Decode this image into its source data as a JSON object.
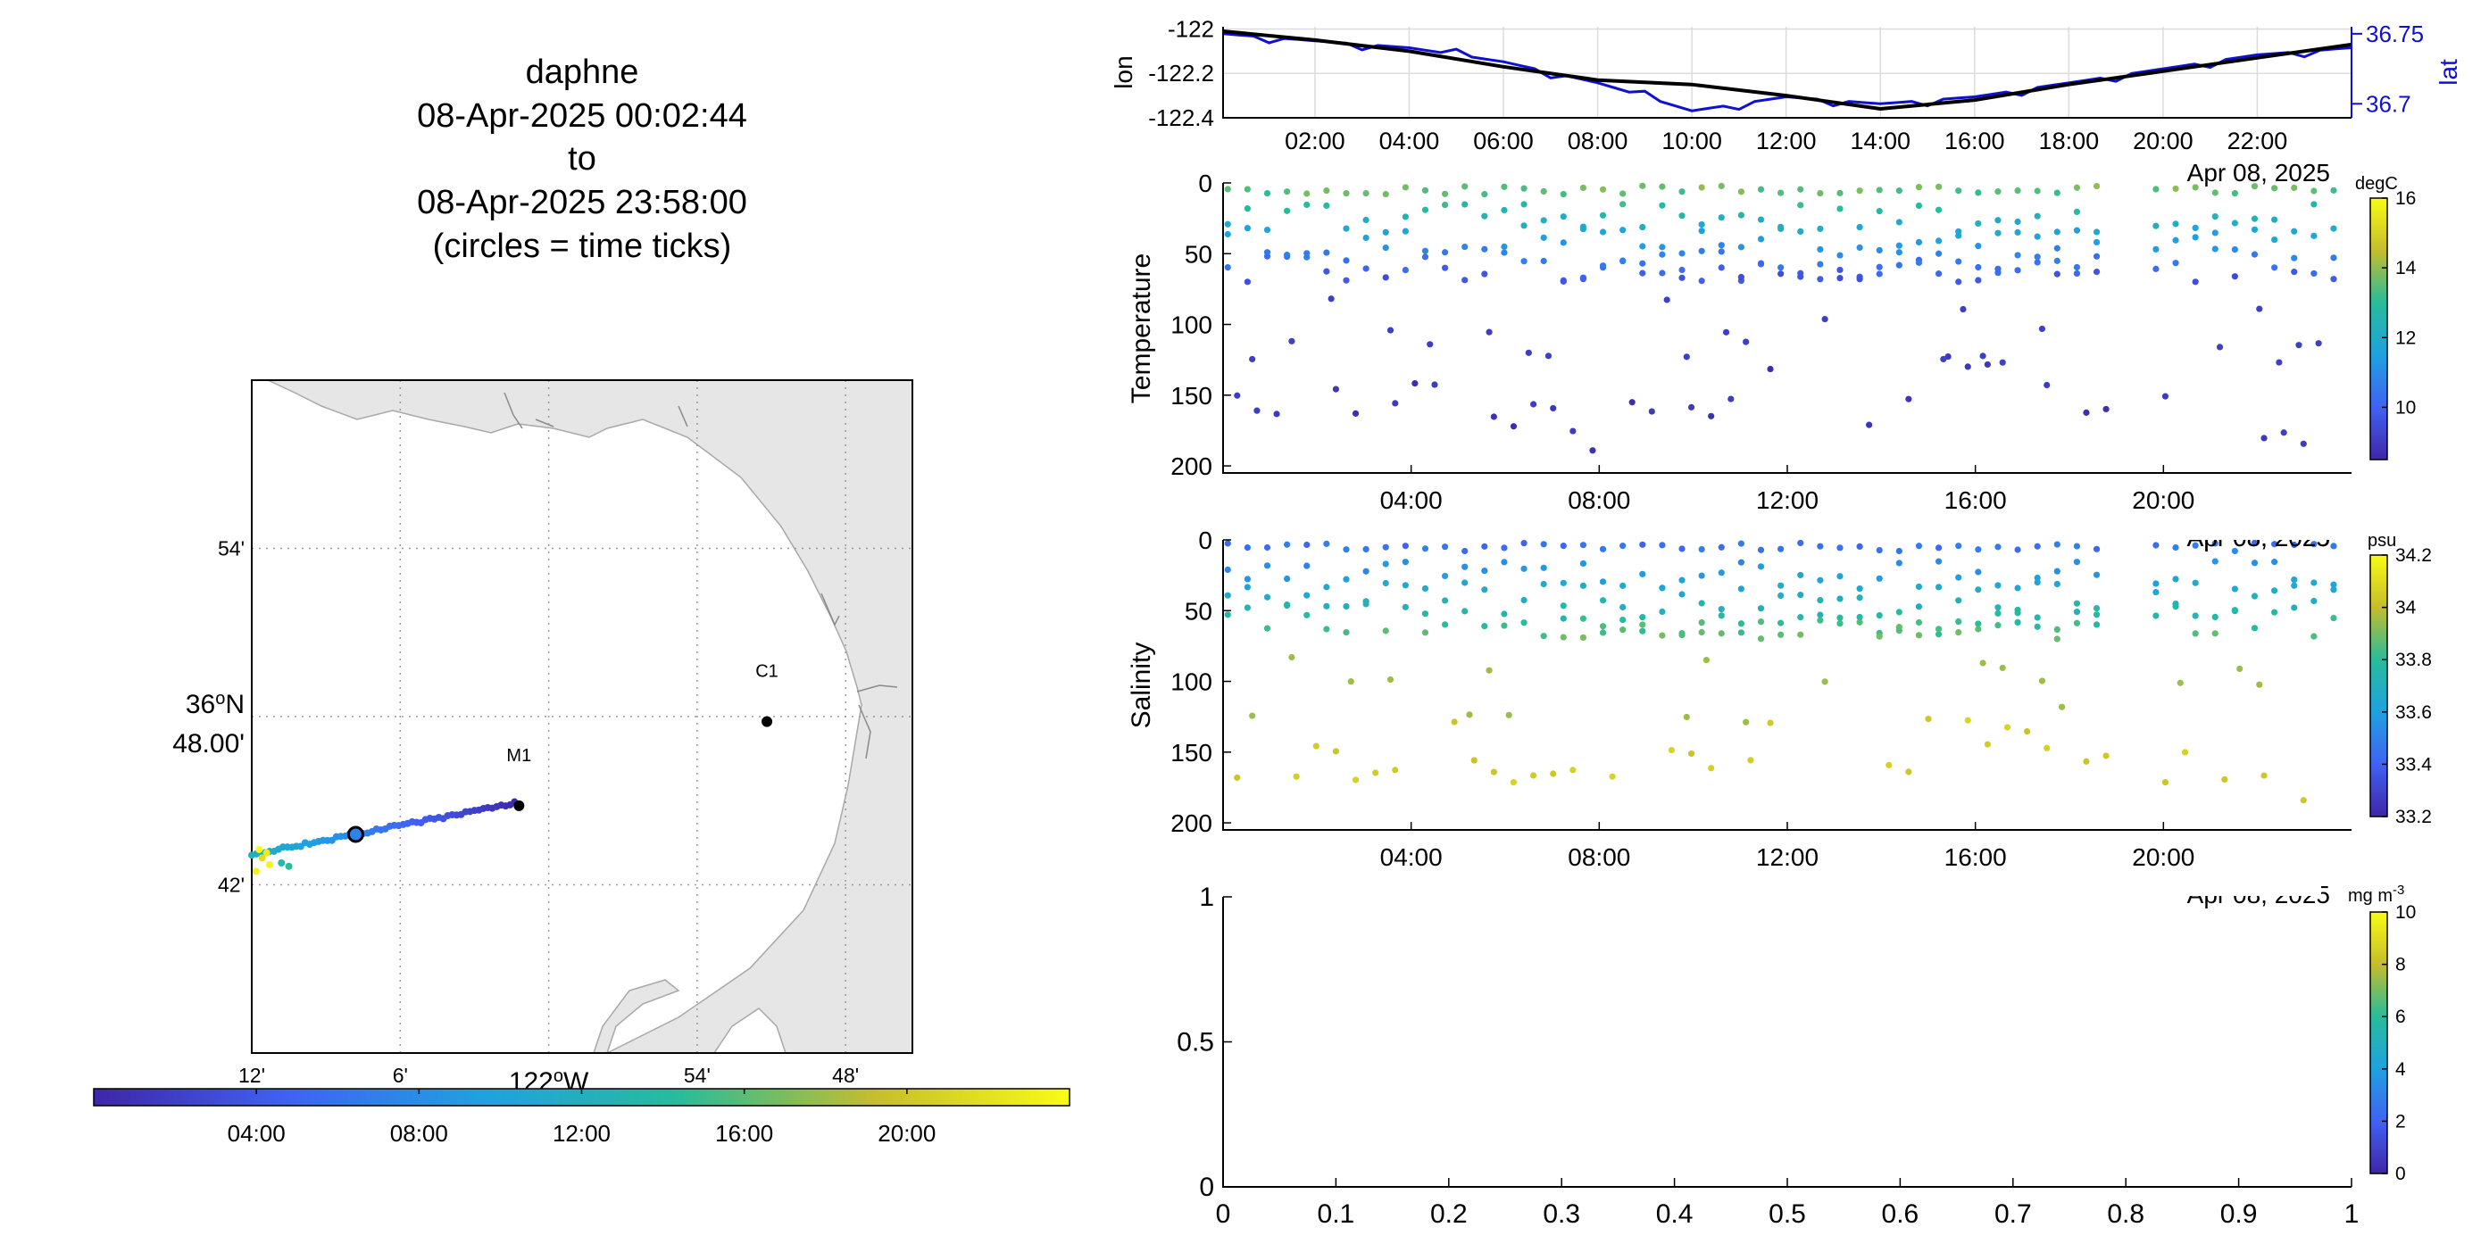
{
  "header": {
    "lines": [
      "daphne",
      "08-Apr-2025 00:02:44",
      "to",
      "08-Apr-2025 23:58:00",
      "(circles = time ticks)"
    ]
  },
  "colors": {
    "lat": "#1010d0",
    "lon": "#000000",
    "land": "#e6e6e6",
    "grid": "#bfbfbf"
  },
  "chart_data": [
    {
      "id": "map",
      "type": "scatter",
      "lat_ticks": [
        "54'",
        "36°N\n48.00'",
        "42'"
      ],
      "lat_values": [
        36.9,
        36.8,
        36.7
      ],
      "lon_ticks": [
        "12'",
        "6'",
        "122°W",
        "54'",
        "48'"
      ],
      "lon_values": [
        -122.2,
        -122.1,
        -122.0,
        -121.9,
        -121.8
      ],
      "xlim": [
        -122.2,
        -121.755
      ],
      "ylim": [
        36.6,
        37.0
      ],
      "moorings": [
        {
          "name": "M1",
          "lon": -122.02,
          "lat": 36.747
        },
        {
          "name": "C1",
          "lon": -121.853,
          "lat": 36.797
        }
      ],
      "track": {
        "lon_start": -122.02,
        "lat_start": 36.749,
        "lon_end": -122.2,
        "lat_end": 36.718,
        "time_tick": {
          "lon": -122.13,
          "lat": 36.73
        }
      },
      "colorbar": {
        "label_ticks": [
          "04:00",
          "08:00",
          "12:00",
          "16:00",
          "20:00"
        ],
        "tick_hours": [
          4,
          8,
          12,
          16,
          20
        ],
        "range_hours": [
          0,
          24
        ]
      }
    },
    {
      "id": "lonlat",
      "type": "line",
      "ylabel": "lon",
      "y2label": "lat",
      "yticks": [
        "-122",
        "-122.2",
        "-122.4"
      ],
      "ytick_values": [
        -122,
        -122.2,
        -122.4
      ],
      "y2ticks": [
        "36.75",
        "36.7"
      ],
      "y2tick_values": [
        36.75,
        36.7
      ],
      "ylim": [
        -122.4,
        -121.99
      ],
      "y2lim": [
        36.69,
        36.755
      ],
      "xticks": [
        "02:00",
        "04:00",
        "06:00",
        "08:00",
        "10:00",
        "12:00",
        "14:00",
        "16:00",
        "18:00",
        "20:00",
        "22:00"
      ],
      "xtick_hours": [
        2,
        4,
        6,
        8,
        10,
        12,
        14,
        16,
        18,
        20,
        22
      ],
      "xlim": [
        0.05,
        24
      ],
      "date_label": "Apr 08, 2025",
      "series": [
        {
          "name": "lon",
          "x": [
            0.05,
            2,
            4,
            6,
            8,
            10,
            12,
            14,
            16,
            18,
            20,
            22,
            24
          ],
          "y": [
            -122.01,
            -122.05,
            -122.1,
            -122.17,
            -122.23,
            -122.25,
            -122.3,
            -122.36,
            -122.32,
            -122.25,
            -122.19,
            -122.13,
            -122.07
          ]
        },
        {
          "name": "lat",
          "x": [
            0.05,
            2,
            4,
            6,
            8,
            10,
            12,
            14,
            16,
            18,
            20,
            22,
            24
          ],
          "y": [
            36.75,
            36.745,
            36.74,
            36.73,
            36.715,
            36.695,
            36.705,
            36.7,
            36.705,
            36.715,
            36.725,
            36.735,
            36.74
          ]
        }
      ]
    },
    {
      "id": "temperature",
      "type": "scatter",
      "ylabel": "Temperature",
      "yticks": [
        "0",
        "50",
        "100",
        "150",
        "200"
      ],
      "ytick_values": [
        0,
        50,
        100,
        150,
        200
      ],
      "ylim": [
        0,
        205
      ],
      "xticks": [
        "04:00",
        "08:00",
        "12:00",
        "16:00",
        "20:00"
      ],
      "xtick_hours": [
        4,
        8,
        12,
        16,
        20
      ],
      "xlim": [
        0,
        24
      ],
      "date_label": "Apr 08, 2025",
      "colorbar": {
        "unit": "degC",
        "ticks": [
          "16",
          "14",
          "12",
          "10"
        ],
        "tick_values": [
          16,
          14,
          12,
          10
        ],
        "range": [
          8.5,
          16
        ]
      },
      "gap_hours": [
        18.9,
        19.6
      ],
      "deep_depth_hours": [
        0.2,
        1,
        2,
        3,
        4,
        5,
        6,
        7,
        7.8,
        8.6,
        9.5,
        10.5,
        11.5,
        12.5,
        13.5,
        14.3,
        15,
        16,
        17,
        18,
        18.8,
        20,
        21,
        22,
        23.8
      ],
      "deep_depth_values": [
        170,
        170,
        150,
        175,
        130,
        145,
        160,
        155,
        185,
        160,
        150,
        155,
        140,
        145,
        165,
        160,
        130,
        140,
        135,
        150,
        155,
        160,
        160,
        175,
        200
      ]
    },
    {
      "id": "salinity",
      "type": "scatter",
      "ylabel": "Salinity",
      "yticks": [
        "0",
        "50",
        "100",
        "150",
        "200"
      ],
      "ytick_values": [
        0,
        50,
        100,
        150,
        200
      ],
      "ylim": [
        0,
        205
      ],
      "xticks": [
        "04:00",
        "08:00",
        "12:00",
        "16:00",
        "20:00"
      ],
      "xtick_hours": [
        4,
        8,
        12,
        16,
        20
      ],
      "xlim": [
        0,
        24
      ],
      "date_label": "Apr 08, 2025",
      "colorbar": {
        "unit": "psu",
        "ticks": [
          "34.2",
          "34",
          "33.8",
          "33.6",
          "33.4",
          "33.2"
        ],
        "tick_values": [
          34.2,
          34,
          33.8,
          33.6,
          33.4,
          33.2
        ],
        "range": [
          33.2,
          34.2
        ]
      },
      "gap_hours": [
        18.9,
        19.6
      ]
    },
    {
      "id": "chlorophyll",
      "type": "scatter",
      "yticks": [
        "0",
        "0.5",
        "1"
      ],
      "ytick_values": [
        0,
        0.5,
        1
      ],
      "xticks": [
        "0",
        "0.1",
        "0.2",
        "0.3",
        "0.4",
        "0.5",
        "0.6",
        "0.7",
        "0.8",
        "0.9",
        "1"
      ],
      "xtick_values": [
        0,
        0.1,
        0.2,
        0.3,
        0.4,
        0.5,
        0.6,
        0.7,
        0.8,
        0.9,
        1
      ],
      "xlim": [
        0,
        1
      ],
      "ylim": [
        0,
        1
      ],
      "colorbar": {
        "unit": "mg m",
        "unit_sup": "-3",
        "ticks": [
          "10",
          "8",
          "6",
          "4",
          "2",
          "0"
        ],
        "tick_values": [
          10,
          8,
          6,
          4,
          2,
          0
        ],
        "range": [
          0,
          10
        ]
      }
    }
  ]
}
